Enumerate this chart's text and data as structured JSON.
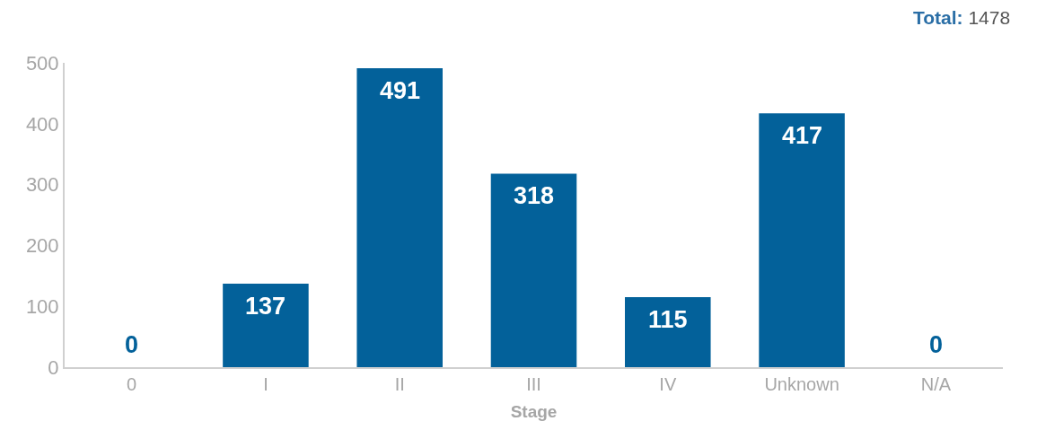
{
  "chart_data": {
    "type": "bar",
    "xlabel": "Stage",
    "categories": [
      "0",
      "I",
      "II",
      "III",
      "IV",
      "Unknown",
      "N/A"
    ],
    "values": [
      0,
      137,
      491,
      318,
      115,
      417,
      0
    ],
    "color": "#03619a",
    "ylim": [
      0,
      500
    ],
    "yticks": [
      0,
      100,
      200,
      300,
      400,
      500
    ],
    "grid": false,
    "data_labels": true,
    "annotations": [
      "Total: 1478"
    ]
  }
}
